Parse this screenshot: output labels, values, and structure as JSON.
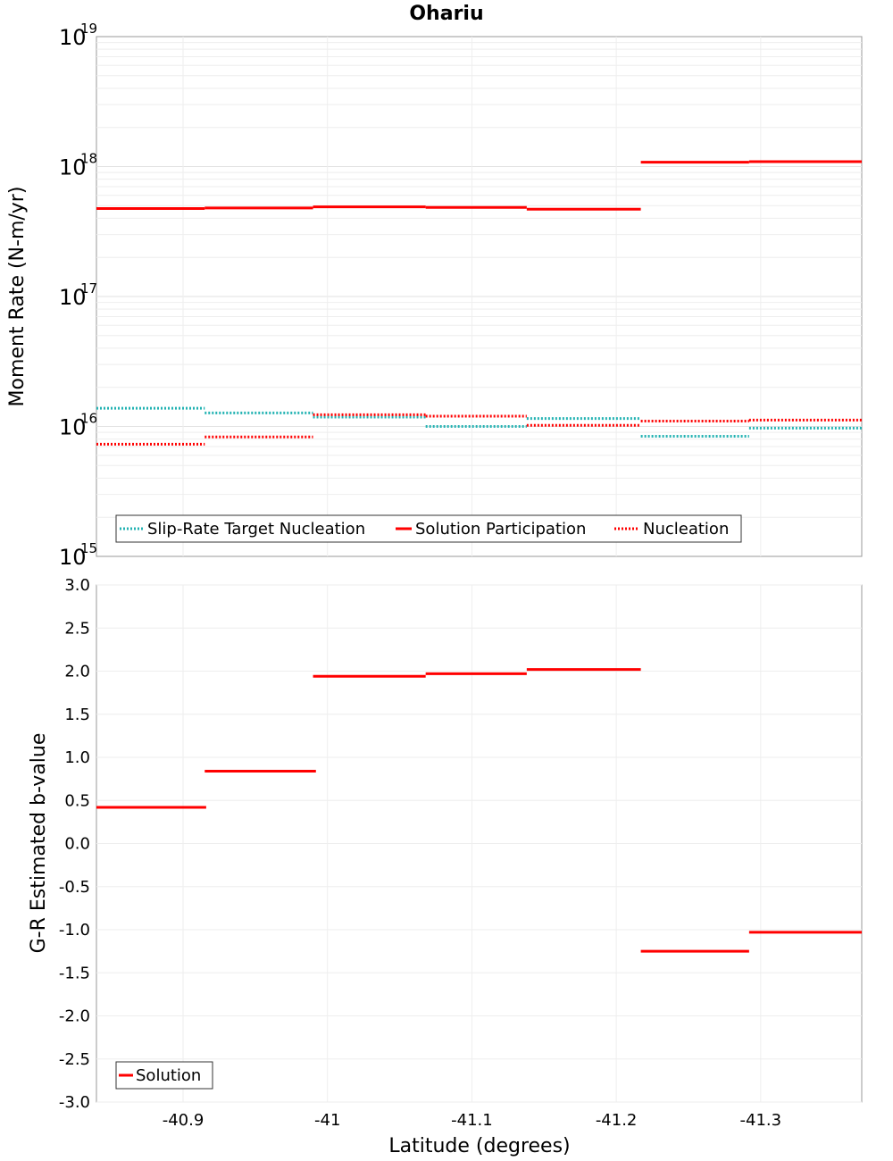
{
  "title": "Ohariu",
  "chart_data": [
    {
      "type": "line",
      "panel": "top",
      "ylabel": "Moment Rate (N-m/yr)",
      "yscale": "log",
      "ylim": [
        1000000000000000.0,
        1e+19
      ],
      "xlim": [
        -40.84,
        -41.37
      ],
      "grid": true,
      "legend_position": "bottom-left",
      "y_ticks": [
        {
          "base": "10",
          "exp": "15",
          "value": 1000000000000000.0
        },
        {
          "base": "10",
          "exp": "16",
          "value": 1e+16
        },
        {
          "base": "10",
          "exp": "17",
          "value": 1e+17
        },
        {
          "base": "10",
          "exp": "18",
          "value": 1e+18
        },
        {
          "base": "10",
          "exp": "19",
          "value": 1e+19
        }
      ],
      "series": [
        {
          "name": "Slip-Rate Target Nucleation",
          "color": "#22b2b2",
          "style": "dotted",
          "segments": [
            {
              "x0": -40.84,
              "x1": -40.915,
              "y": 1.38e+16
            },
            {
              "x0": -40.915,
              "x1": -40.99,
              "y": 1.27e+16
            },
            {
              "x0": -40.99,
              "x1": -41.068,
              "y": 1.18e+16
            },
            {
              "x0": -41.068,
              "x1": -41.138,
              "y": 1e+16
            },
            {
              "x0": -41.138,
              "x1": -41.217,
              "y": 1.15e+16
            },
            {
              "x0": -41.217,
              "x1": -41.292,
              "y": 8400000000000000.0
            },
            {
              "x0": -41.292,
              "x1": -41.37,
              "y": 9700000000000000.0
            }
          ]
        },
        {
          "name": "Solution Participation",
          "color": "#ff0000",
          "style": "solid",
          "segments": [
            {
              "x0": -40.84,
              "x1": -40.915,
              "y": 4.75e+17
            },
            {
              "x0": -40.915,
              "x1": -40.99,
              "y": 4.8e+17
            },
            {
              "x0": -40.99,
              "x1": -41.068,
              "y": 4.9e+17
            },
            {
              "x0": -41.068,
              "x1": -41.138,
              "y": 4.85e+17
            },
            {
              "x0": -41.138,
              "x1": -41.217,
              "y": 4.7e+17
            },
            {
              "x0": -41.217,
              "x1": -41.292,
              "y": 1.08e+18
            },
            {
              "x0": -41.292,
              "x1": -41.37,
              "y": 1.09e+18
            }
          ]
        },
        {
          "name": "Nucleation",
          "color": "#ff0000",
          "style": "dotted",
          "segments": [
            {
              "x0": -40.84,
              "x1": -40.915,
              "y": 7300000000000000.0
            },
            {
              "x0": -40.915,
              "x1": -40.99,
              "y": 8300000000000000.0
            },
            {
              "x0": -40.99,
              "x1": -41.068,
              "y": 1.23e+16
            },
            {
              "x0": -41.068,
              "x1": -41.138,
              "y": 1.2e+16
            },
            {
              "x0": -41.138,
              "x1": -41.217,
              "y": 1.02e+16
            },
            {
              "x0": -41.217,
              "x1": -41.292,
              "y": 1.1e+16
            },
            {
              "x0": -41.292,
              "x1": -41.37,
              "y": 1.12e+16
            }
          ]
        }
      ]
    },
    {
      "type": "line",
      "panel": "bottom",
      "xlabel": "Latitude (degrees)",
      "ylabel": "G-R Estimated b-value",
      "ylim": [
        -3.0,
        3.0
      ],
      "xlim": [
        -40.84,
        -41.37
      ],
      "grid": true,
      "legend_position": "bottom-left",
      "x_ticks": [
        {
          "label": "-40.9",
          "value": -40.9
        },
        {
          "label": "-41",
          "value": -41.0
        },
        {
          "label": "-41.1",
          "value": -41.1
        },
        {
          "label": "-41.2",
          "value": -41.2
        },
        {
          "label": "-41.3",
          "value": -41.3
        }
      ],
      "y_ticks": [
        {
          "label": "3.0",
          "value": 3.0
        },
        {
          "label": "2.5",
          "value": 2.5
        },
        {
          "label": "2.0",
          "value": 2.0
        },
        {
          "label": "1.5",
          "value": 1.5
        },
        {
          "label": "1.0",
          "value": 1.0
        },
        {
          "label": "0.5",
          "value": 0.5
        },
        {
          "label": "0.0",
          "value": 0.0
        },
        {
          "label": "-0.5",
          "value": -0.5
        },
        {
          "label": "-1.0",
          "value": -1.0
        },
        {
          "label": "-1.5",
          "value": -1.5
        },
        {
          "label": "-2.0",
          "value": -2.0
        },
        {
          "label": "-2.5",
          "value": -2.5
        },
        {
          "label": "-3.0",
          "value": -3.0
        }
      ],
      "series": [
        {
          "name": "Solution",
          "color": "#ff0000",
          "style": "solid",
          "segments": [
            {
              "x0": -40.84,
              "x1": -40.916,
              "y": 0.42
            },
            {
              "x0": -40.915,
              "x1": -40.992,
              "y": 0.84
            },
            {
              "x0": -40.99,
              "x1": -41.068,
              "y": 1.94
            },
            {
              "x0": -41.068,
              "x1": -41.138,
              "y": 1.97
            },
            {
              "x0": -41.138,
              "x1": -41.217,
              "y": 2.02
            },
            {
              "x0": -41.217,
              "x1": -41.292,
              "y": -1.25
            },
            {
              "x0": -41.292,
              "x1": -41.37,
              "y": -1.03
            }
          ]
        }
      ]
    }
  ]
}
